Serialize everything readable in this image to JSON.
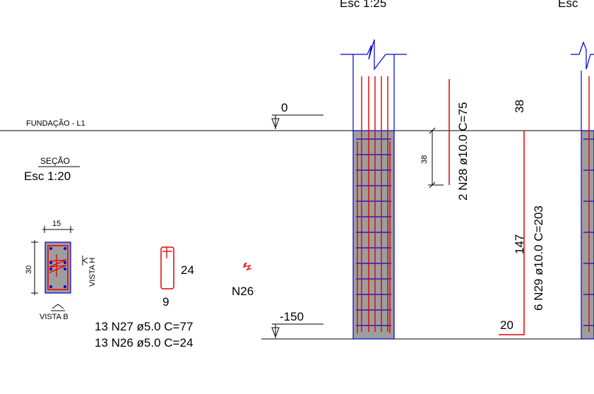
{
  "scale_labels": {
    "top_left": "Esc 1:25",
    "top_right": "Esc"
  },
  "level_labels": {
    "foundation": "FUNDAÇÃO - L1",
    "zero": "0",
    "bottom": "-150"
  },
  "section": {
    "title": "SEÇÃO",
    "scale": "Esc 1:20",
    "width_dim": "15",
    "height_dim": "30",
    "view_h": "VISTA H",
    "view_b": "VISTA B"
  },
  "stirrup_detail": {
    "height": "24",
    "width": "9",
    "hook_label": "N26",
    "spec_n27": "13 N27 ø5.0 C=77",
    "spec_n26": "13 N26 ø5.0 C=24"
  },
  "rebar_n28": {
    "label": "2 N28 ø10.0 C=75",
    "dimension": "38"
  },
  "rebar_n29": {
    "label": "6 N29 ø10.0 C=203",
    "top_length": "38",
    "mid_length": "147",
    "hook_length": "20"
  },
  "colors": {
    "concrete": "#9e9e9e",
    "rebar": "#e00000",
    "stirrup": "#0000e0",
    "outline": "#0000c8",
    "line": "#000000"
  }
}
